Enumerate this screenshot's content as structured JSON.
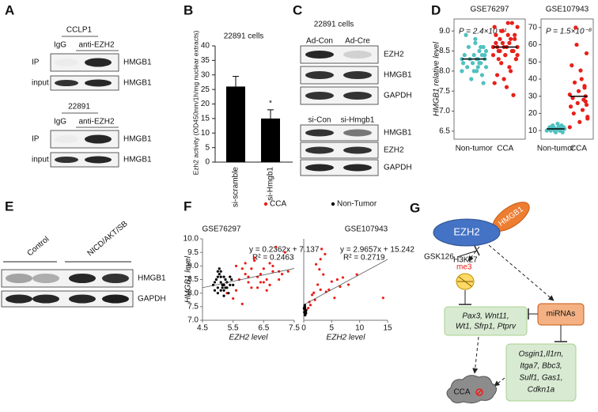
{
  "panel_a": {
    "label": "A",
    "blots": [
      {
        "cell_line": "CCLP1",
        "lanes": [
          "IgG",
          "anti-EZH2"
        ],
        "rows": [
          "IP",
          "input"
        ],
        "protein": "HMGB1"
      },
      {
        "cell_line": "22891",
        "lanes": [
          "IgG",
          "anti-EZH2"
        ],
        "rows": [
          "IP",
          "input"
        ],
        "protein": "HMGB1"
      }
    ]
  },
  "panel_b": {
    "label": "B",
    "chart": {
      "type": "bar",
      "title": "22891 cells",
      "y_label": "Ezh2 activity (OD450nm/1h/mg nuclear extracts)",
      "categories": [
        "si-scramble",
        "si-Hmgb1"
      ],
      "values": [
        26,
        15
      ],
      "errors": [
        3.5,
        3
      ],
      "annotation": "*",
      "color": "#000000",
      "ylim": [
        0,
        40
      ],
      "yticks": [
        0,
        5,
        10,
        15,
        20,
        25,
        30,
        35,
        40
      ]
    }
  },
  "panel_c": {
    "label": "C",
    "cell_line": "22891 cells",
    "blots": [
      {
        "lanes": [
          "Ad-Con",
          "Ad-Cre"
        ],
        "proteins": [
          "EZH2",
          "HMGB1",
          "GAPDH"
        ]
      },
      {
        "lanes": [
          "si-Con",
          "si-Hmgb1"
        ],
        "proteins": [
          "HMGB1",
          "EZH2",
          "GAPDH"
        ]
      }
    ]
  },
  "panel_d": {
    "label": "D",
    "y_label": "HMGB1 relative level",
    "charts": [
      {
        "type": "strip",
        "title": "GSE76297",
        "p_value": "P = 2.4×10⁻¹¹",
        "ylim": [
          6.3,
          9.3
        ],
        "yticks": [
          {
            "value": 6.5,
            "label": "6.5"
          },
          {
            "value": 7,
            "label": "7.0"
          },
          {
            "value": 7.5,
            "label": "7.5"
          },
          {
            "value": 8,
            "label": "8.0"
          },
          {
            "value": 8.5,
            "label": "8.5"
          },
          {
            "value": 9,
            "label": "9.0"
          }
        ],
        "groups": [
          {
            "name": "Non-tumor",
            "color": "#4fc1c0",
            "median": 8.3,
            "values": [
              8.3,
              8.1,
              8.4,
              8.6,
              7.9,
              8.2,
              8.5,
              8.3,
              8.0,
              8.7,
              8.4,
              8.2,
              7.8,
              8.3,
              8.6,
              8.1,
              8.9,
              8.4,
              8.2,
              8.0,
              8.5,
              8.3,
              7.7,
              8.4,
              8.6,
              8.2,
              8.1,
              8.3,
              8.8,
              8.0
            ]
          },
          {
            "name": "CCA",
            "color": "#e8201a",
            "median": 8.6,
            "values": [
              8.6,
              9.1,
              8.3,
              8.8,
              8.5,
              9.2,
              8.0,
              8.7,
              8.9,
              7.6,
              8.4,
              8.6,
              9.0,
              8.2,
              8.8,
              8.5,
              7.9,
              8.7,
              9.1,
              8.4,
              8.6,
              8.3,
              8.9,
              7.4,
              8.5,
              8.8,
              8.1,
              9.2,
              8.6,
              8.4,
              7.8,
              8.7,
              9.0,
              8.5,
              8.3,
              8.6,
              8.9,
              7.7,
              8.6,
              8.4
            ]
          }
        ]
      },
      {
        "type": "strip",
        "title": "GSE107943",
        "p_value": "P = 1.5×10⁻⁸",
        "ylim": [
          5,
          75
        ],
        "yticks": [
          10,
          20,
          30,
          40,
          50,
          60,
          70
        ],
        "groups": [
          {
            "name": "Non-tumor",
            "color": "#4fc1c0",
            "median": 11,
            "values": [
              10,
              11,
              12,
              9,
              13,
              11,
              10,
              12,
              14,
              11,
              9,
              10,
              12,
              13,
              11,
              10,
              12,
              11
            ]
          },
          {
            "name": "CCA",
            "color": "#e8201a",
            "median": 30,
            "values": [
              12,
              18,
              25,
              30,
              35,
              28,
              22,
              40,
              45,
              15,
              33,
              26,
              60,
              70,
              38,
              20,
              29,
              48,
              24,
              31,
              17,
              55,
              27,
              36
            ]
          }
        ]
      }
    ]
  },
  "panel_e": {
    "label": "E",
    "groups": [
      "Control",
      "NICD/AKT/SB"
    ],
    "proteins": [
      "HMGB1",
      "GAPDH"
    ]
  },
  "panel_f": {
    "label": "F",
    "legend": [
      {
        "name": "CCA",
        "color": "#e8201a"
      },
      {
        "name": "Non-Tumor",
        "color": "#000000"
      }
    ],
    "charts": [
      {
        "type": "scatter",
        "title": "GSE76297",
        "x_label": "EZH2 level",
        "y_label": "HMGB1 level",
        "equation": "y = 0.2362x + 7.137",
        "r2": "R² = 0.2463",
        "fit": {
          "slope": 0.2362,
          "intercept": 7.137
        },
        "xlim": [
          4.5,
          7.5
        ],
        "ylim": [
          7,
          10
        ],
        "xticks": [
          4.5,
          5.5,
          6.5,
          7.5
        ],
        "yticks": [
          {
            "value": 7,
            "label": "7.0"
          },
          {
            "value": 7.5,
            "label": "7.5"
          },
          {
            "value": 8,
            "label": "8.0"
          },
          {
            "value": 8.5,
            "label": "8.5"
          },
          {
            "value": 9,
            "label": "9.0"
          },
          {
            "value": 9.5,
            "label": "9.5"
          },
          {
            "value": 10,
            "label": "10.0"
          }
        ],
        "series": [
          {
            "x": [
              5.2,
              5.4,
              5.6,
              5.8,
              6.0,
              6.2,
              6.4,
              6.6,
              6.8,
              7.0,
              7.2,
              5.5,
              5.7,
              5.9,
              6.1,
              6.3,
              6.5,
              6.7,
              6.9,
              7.1,
              5.3,
              5.6,
              6.0,
              6.4,
              6.8,
              5.8,
              6.2,
              6.6,
              7.0,
              5.9,
              6.3,
              6.7,
              6.1,
              6.5,
              7.3
            ],
            "y": [
              8.3,
              8.6,
              8.1,
              8.9,
              8.4,
              9.2,
              8.7,
              8.5,
              9.0,
              8.8,
              9.5,
              7.8,
              8.5,
              9.1,
              8.2,
              8.6,
              8.9,
              8.3,
              9.7,
              8.7,
              8.0,
              9.0,
              8.6,
              8.4,
              8.8,
              7.6,
              9.3,
              8.1,
              8.5,
              8.7,
              8.2,
              9.1,
              8.9,
              8.4,
              8.8
            ]
          },
          {
            "x": [
              4.9,
              5.0,
              5.1,
              5.2,
              5.0,
              4.95,
              5.3,
              5.1,
              5.2,
              5.4,
              5.05,
              5.15,
              5.25,
              5.35,
              4.85,
              5.0,
              5.1,
              5.2,
              5.3,
              5.45,
              5.1,
              5.0,
              5.2,
              5.15,
              5.3,
              4.9,
              5.05,
              5.25,
              5.4,
              5.5
            ],
            "y": [
              8.4,
              8.2,
              8.6,
              8.3,
              8.0,
              8.5,
              8.4,
              8.8,
              8.1,
              8.3,
              8.7,
              8.2,
              8.5,
              8.0,
              8.3,
              8.6,
              8.4,
              7.9,
              8.2,
              8.5,
              8.1,
              8.8,
              8.6,
              8.3,
              8.4,
              8.1,
              8.9,
              8.2,
              8.6,
              8.3
            ]
          }
        ]
      },
      {
        "type": "scatter",
        "title": "GSE107943",
        "x_label": "EZH2 level",
        "equation": "y = 2.9657x + 15.242",
        "r2": "R² = 0.2719",
        "fit": {
          "slope": 2.9657,
          "intercept": 15.242
        },
        "xlim": [
          0,
          15
        ],
        "ylim": [
          0,
          80
        ],
        "xticks": [
          0,
          5,
          10,
          15
        ],
        "series": [
          {
            "x": [
              0.5,
              1.0,
              1.5,
              2.0,
              2.5,
              3.0,
              3.5,
              4.0,
              5.0,
              5.5,
              6.0,
              7.0,
              8.0,
              3.2,
              2.2,
              1.2,
              4.5,
              0.8,
              2.8,
              3.8,
              1.8,
              6.5,
              3.0,
              14.2,
              9.5
            ],
            "y": [
              10,
              18,
              25,
              20,
              35,
              30,
              45,
              28,
              38,
              22,
              40,
              42,
              35,
              70,
              55,
              15,
              30,
              12,
              50,
              65,
              27,
              33,
              60,
              22,
              45
            ]
          },
          {
            "x": [
              0.1,
              0.2,
              0.3,
              0.15,
              0.25,
              0.35,
              0.1,
              0.2,
              0.4,
              0.3,
              0.05,
              0.2,
              0.3,
              0.15,
              0.25
            ],
            "y": [
              8,
              12,
              10,
              14,
              6,
              9,
              11,
              13,
              7,
              10,
              12,
              15,
              9,
              11,
              5
            ]
          }
        ]
      }
    ]
  },
  "panel_g": {
    "label": "G",
    "ezh2": "EZH2",
    "hmgb1": "HMGB1",
    "inhibitor": "GSK126",
    "histone": "H3K27",
    "histone_mark": "me3",
    "targets": [
      "Pax3, Wnt11,",
      "Wt1, Sfrp1, Ptprv"
    ],
    "mirnas": "miRNAs",
    "mirna_targets": [
      "Osgin1,Il1rn,",
      "Itga7, Bbc3,",
      "Sulf1, Gas1,",
      "Cdkn1a"
    ],
    "outcome": "CCA"
  }
}
